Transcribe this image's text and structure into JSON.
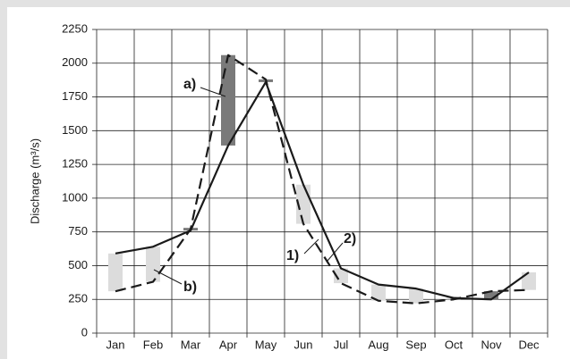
{
  "chart_data": {
    "type": "line",
    "ylabel": "Discharge (m³/s)",
    "categories": [
      "Jan",
      "Feb",
      "Mar",
      "Apr",
      "May",
      "Jun",
      "Jul",
      "Aug",
      "Sep",
      "Oct",
      "Nov",
      "Dec"
    ],
    "series": [
      {
        "name": "1)",
        "color": "#1a1a1a",
        "dashed": true,
        "values": [
          310,
          380,
          770,
          2060,
          1880,
          810,
          370,
          240,
          220,
          250,
          310,
          320
        ]
      },
      {
        "name": "2)",
        "color": "#1a1a1a",
        "dashed": false,
        "values": [
          590,
          640,
          760,
          1390,
          1860,
          1100,
          480,
          360,
          330,
          260,
          250,
          450
        ]
      }
    ],
    "difference_colors": {
      "higher_2": "#dcdcdc",
      "higher_1": "#7a7a7a"
    },
    "annotations": [
      "a)",
      "b)"
    ],
    "ylim": [
      0,
      2250
    ],
    "yticks": [
      0,
      250,
      500,
      750,
      1000,
      1250,
      1500,
      1750,
      2000,
      2250
    ],
    "grid": true
  }
}
